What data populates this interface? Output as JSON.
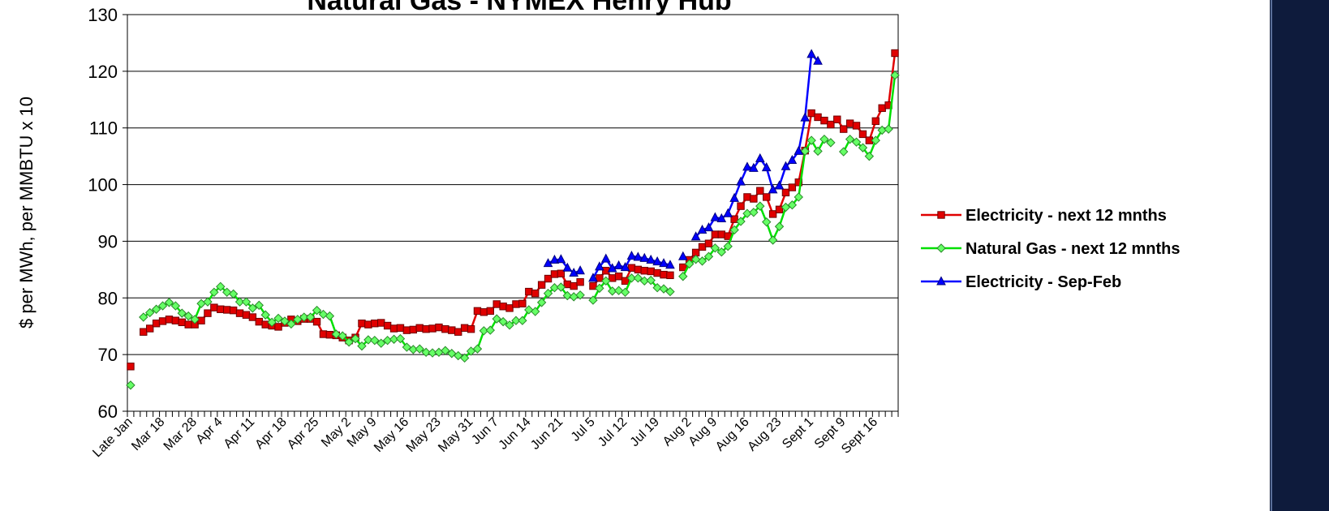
{
  "chart_data": {
    "type": "line",
    "title": "Natural Gas - NYMEX Henry Hub",
    "y_label": "$ per MWh, per MMBTU x 10",
    "categories": [
      "Late Jan",
      null,
      null,
      null,
      null,
      "Mar 18",
      null,
      null,
      null,
      null,
      "Mar 28",
      null,
      null,
      null,
      "Apr 4",
      null,
      null,
      null,
      null,
      "Apr 11",
      null,
      null,
      null,
      null,
      "Apr 18",
      null,
      null,
      null,
      null,
      "Apr 25",
      null,
      null,
      null,
      null,
      "May 2",
      null,
      null,
      null,
      "May 9",
      null,
      null,
      null,
      null,
      "May 16",
      null,
      null,
      null,
      null,
      "May 23",
      null,
      null,
      null,
      null,
      "May 31",
      null,
      null,
      null,
      "Jun 7",
      null,
      null,
      null,
      null,
      "Jun 14",
      null,
      null,
      null,
      null,
      "Jun 21",
      null,
      null,
      null,
      null,
      "Jul 5",
      null,
      null,
      null,
      null,
      "Jul 12",
      null,
      null,
      null,
      null,
      "Jul 19",
      null,
      null,
      null,
      null,
      "Aug 2",
      null,
      null,
      null,
      "Aug 9",
      null,
      null,
      null,
      null,
      "Aug 16",
      null,
      null,
      null,
      null,
      "Aug 23",
      null,
      null,
      null,
      null,
      "Sept 1",
      null,
      null,
      null,
      null,
      "Sept 9",
      null,
      null,
      null,
      null,
      "Sept 16",
      null,
      null,
      null
    ],
    "series": [
      {
        "name": "Electricity - next 12 mnths",
        "color": "#e00000",
        "marker": "square",
        "values": [
          67.9,
          null,
          74.0,
          74.6,
          75.5,
          75.9,
          76.2,
          76.0,
          75.7,
          75.3,
          75.3,
          76.0,
          77.3,
          78.3,
          78.0,
          77.9,
          77.8,
          77.3,
          77.0,
          76.6,
          75.8,
          75.3,
          75.1,
          74.9,
          75.6,
          76.2,
          75.9,
          76.3,
          76.3,
          75.8,
          73.6,
          73.5,
          73.4,
          73.0,
          72.5,
          73.0,
          75.5,
          75.3,
          75.5,
          75.6,
          75.1,
          74.6,
          74.7,
          74.3,
          74.4,
          74.7,
          74.5,
          74.6,
          74.8,
          74.5,
          74.3,
          74.0,
          74.7,
          74.5,
          77.7,
          77.5,
          77.7,
          78.9,
          78.5,
          78.2,
          78.9,
          79.0,
          81.1,
          80.8,
          82.3,
          83.4,
          84.2,
          84.3,
          82.4,
          82.1,
          82.8,
          null,
          82.1,
          83.5,
          84.8,
          83.5,
          83.8,
          83.0,
          85.3,
          85.0,
          84.8,
          84.7,
          84.4,
          84.1,
          84.0,
          null,
          85.4,
          86.7,
          88.0,
          89.0,
          89.6,
          91.2,
          91.2,
          90.9,
          93.9,
          96.2,
          97.8,
          97.5,
          98.9,
          97.8,
          94.8,
          95.6,
          98.6,
          99.5,
          100.4,
          106.0,
          112.6,
          111.9,
          111.3,
          110.6,
          111.5,
          109.8,
          110.8,
          110.4,
          108.9,
          107.8,
          111.2,
          113.5,
          114.0,
          123.2
        ]
      },
      {
        "name": "Natural Gas - next 12 mnths",
        "color": "#00e000",
        "marker": "diamond",
        "values": [
          64.6,
          null,
          76.6,
          77.4,
          78.0,
          78.6,
          79.2,
          78.6,
          77.3,
          76.8,
          76.2,
          79.0,
          79.3,
          81.0,
          82.0,
          81.0,
          80.7,
          79.3,
          79.3,
          78.2,
          78.7,
          77.0,
          75.7,
          76.4,
          75.9,
          75.4,
          76.2,
          76.6,
          76.6,
          77.8,
          77.1,
          76.8,
          73.6,
          73.3,
          72.2,
          72.8,
          71.5,
          72.6,
          72.5,
          72.0,
          72.5,
          72.7,
          72.8,
          71.3,
          70.9,
          71.0,
          70.4,
          70.3,
          70.4,
          70.7,
          70.2,
          69.8,
          69.4,
          70.6,
          71.0,
          74.2,
          74.3,
          76.3,
          75.8,
          75.2,
          76.0,
          76.0,
          77.9,
          77.6,
          79.2,
          80.8,
          81.8,
          81.9,
          80.4,
          80.2,
          80.5,
          null,
          79.6,
          81.7,
          83.0,
          81.2,
          81.3,
          81.0,
          83.5,
          83.5,
          83.0,
          83.1,
          81.8,
          81.6,
          81.1,
          null,
          83.8,
          86.0,
          86.8,
          86.5,
          87.3,
          88.8,
          88.1,
          89.1,
          92.0,
          93.5,
          94.9,
          95.1,
          96.2,
          93.4,
          90.2,
          92.6,
          96.0,
          96.4,
          97.8,
          105.9,
          107.8,
          105.9,
          108.0,
          107.4,
          null,
          105.8,
          108.0,
          107.5,
          106.5,
          105.0,
          107.8,
          109.6,
          109.8,
          119.3
        ]
      },
      {
        "name": "Electricity - Sep-Feb",
        "color": "#0000ff",
        "marker": "triangle",
        "values": [
          null,
          null,
          null,
          null,
          null,
          null,
          null,
          null,
          null,
          null,
          null,
          null,
          null,
          null,
          null,
          null,
          null,
          null,
          null,
          null,
          null,
          null,
          null,
          null,
          null,
          null,
          null,
          null,
          null,
          null,
          null,
          null,
          null,
          null,
          null,
          null,
          null,
          null,
          null,
          null,
          null,
          null,
          null,
          null,
          null,
          null,
          null,
          null,
          null,
          null,
          null,
          null,
          null,
          null,
          null,
          null,
          null,
          null,
          null,
          null,
          null,
          null,
          null,
          null,
          null,
          86.1,
          86.7,
          86.8,
          85.3,
          84.4,
          84.8,
          null,
          83.5,
          85.5,
          86.9,
          85.2,
          85.7,
          85.4,
          87.4,
          87.2,
          87.0,
          86.7,
          86.4,
          86.1,
          85.8,
          null,
          87.3,
          null,
          90.8,
          92.0,
          92.4,
          94.2,
          94.0,
          94.9,
          97.6,
          100.5,
          103.1,
          102.9,
          104.6,
          103.0,
          99.1,
          99.8,
          103.2,
          104.3,
          105.9,
          111.8,
          123.0,
          121.8,
          null,
          null,
          null,
          null,
          null,
          null,
          null,
          null,
          null,
          null,
          null,
          null
        ]
      }
    ],
    "ylim": [
      60,
      130
    ],
    "yticks": [
      60,
      70,
      80,
      90,
      100,
      110,
      120,
      130
    ],
    "grid": true,
    "legend": "right"
  }
}
